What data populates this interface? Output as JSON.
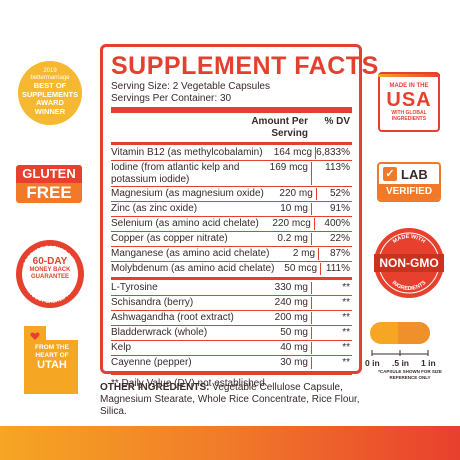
{
  "facts": {
    "title": "SUPPLEMENT FACTS",
    "serving_size": "Serving Size: 2 Vegetable Capsules",
    "servings_per_container": "Servings Per Container: 30",
    "col_amount": "Amount Per Serving",
    "col_dv": "% DV",
    "rows": [
      {
        "name": "Vitamin B12 (as methylcobalamin)",
        "amount": "164 mcg",
        "dv": "6,833%"
      },
      {
        "name": "Iodine (from atlantic kelp and potassium iodide)",
        "amount": "169 mcg",
        "dv": "113%"
      },
      {
        "name": "Magnesium (as magnesium oxide)",
        "amount": "220 mg",
        "dv": "52%"
      },
      {
        "name": "Zinc (as zinc oxide)",
        "amount": "10 mg",
        "dv": "91%"
      },
      {
        "name": "Selenium (as amino acid chelate)",
        "amount": "220 mcg",
        "dv": "400%"
      },
      {
        "name": "Copper (as copper nitrate)",
        "amount": "0.2 mg",
        "dv": "22%"
      },
      {
        "name": "Manganese (as amino acid chelate)",
        "amount": "2 mg",
        "dv": "87%"
      },
      {
        "name": "Molybdenum (as amino acid chelate)",
        "amount": "50 mcg",
        "dv": "111%"
      }
    ],
    "rows2": [
      {
        "name": "L-Tyrosine",
        "amount": "330 mg",
        "dv": "**"
      },
      {
        "name": "Schisandra (berry)",
        "amount": "240 mg",
        "dv": "**"
      },
      {
        "name": "Ashwagandha (root extract)",
        "amount": "200 mg",
        "dv": "**"
      },
      {
        "name": "Bladderwrack (whole)",
        "amount": "50 mg",
        "dv": "**"
      },
      {
        "name": "Kelp",
        "amount": "40 mg",
        "dv": "**"
      },
      {
        "name": "Cayenne (pepper)",
        "amount": "30 mg",
        "dv": "**"
      }
    ],
    "footnote": "** Daily Value (DV) not established."
  },
  "other": {
    "label": "OTHER INGREDIENTS:",
    "text": " Vegetable Cellulose Capsule, Magnesium Stearate, Whole Rice Concentrate, Rice Flour, Silica."
  },
  "badges": {
    "award": {
      "year": "2019",
      "brand": "bettermarriage",
      "line1": "BEST OF",
      "line2": "SUPPLEMENTS",
      "line3": "AWARD",
      "line4": "WINNER"
    },
    "gluten_free": {
      "line1": "GLUTEN",
      "line2": "FREE"
    },
    "money_back": {
      "ring_top": "PRODUCT BACKED WITH",
      "ring_bottom": "PRODUCT BACKED WITH",
      "line1": "60-DAY",
      "line2": "MONEY BACK",
      "line3": "GUARANTEE"
    },
    "utah": {
      "line1": "FROM THE",
      "line2": "HEART OF",
      "line3": "UTAH"
    },
    "usa": {
      "line1": "MADE IN THE",
      "line2": "USA",
      "line3": "WITH GLOBAL",
      "line4": "INGREDIENTS"
    },
    "lab": {
      "check": "✓",
      "line1": "LAB",
      "line2": "VERIFIED"
    },
    "non_gmo": {
      "ring_top": "MADE WITH",
      "ring_bottom": "INGREDIENTS",
      "line1": "NON-GMO"
    },
    "scale": {
      "l0": "0 in",
      "l1": ".5 in",
      "l2": "1 in",
      "note": "*CAPSULE SHOWN FOR SIZE REFERENCE ONLY"
    }
  },
  "colors": {
    "red": "#e4402f",
    "orange": "#f07a2a",
    "yellow": "#f5b830"
  }
}
